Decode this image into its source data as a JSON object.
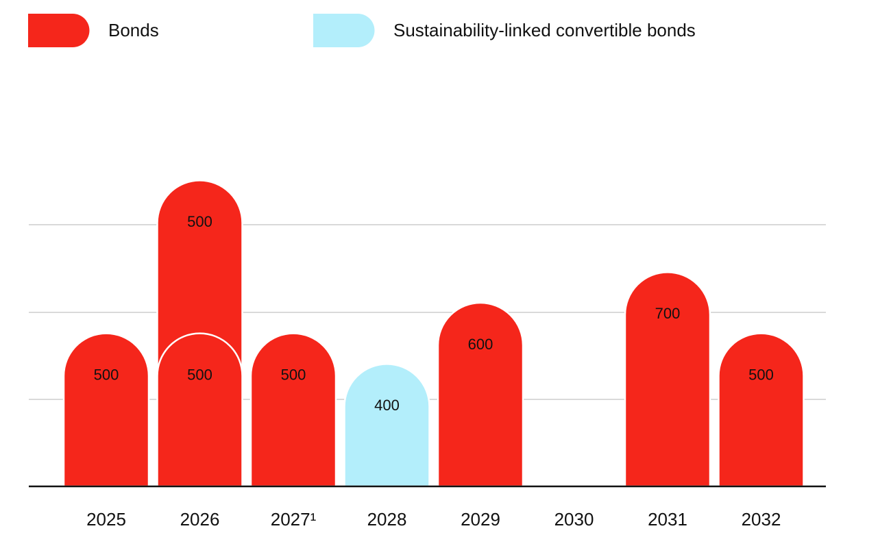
{
  "chart_data": {
    "type": "bar",
    "stacked": true,
    "categories": [
      "2025",
      "2026",
      "2027¹",
      "2028",
      "2029",
      "2030",
      "2031",
      "2032"
    ],
    "series": [
      {
        "name": "Bonds",
        "color": "#f5261b",
        "values": [
          500,
          500,
          500,
          null,
          600,
          null,
          700,
          500
        ]
      },
      {
        "name": "Sustainability-linked convertible bonds",
        "color": "#b3eefb",
        "values": [
          null,
          null,
          null,
          400,
          null,
          null,
          null,
          null
        ]
      },
      {
        "name": "Bonds",
        "color": "#f5261b",
        "values": [
          null,
          500,
          null,
          null,
          null,
          null,
          null,
          null
        ]
      }
    ],
    "ylim": [
      0,
      1200
    ],
    "legend": "top-left"
  }
}
